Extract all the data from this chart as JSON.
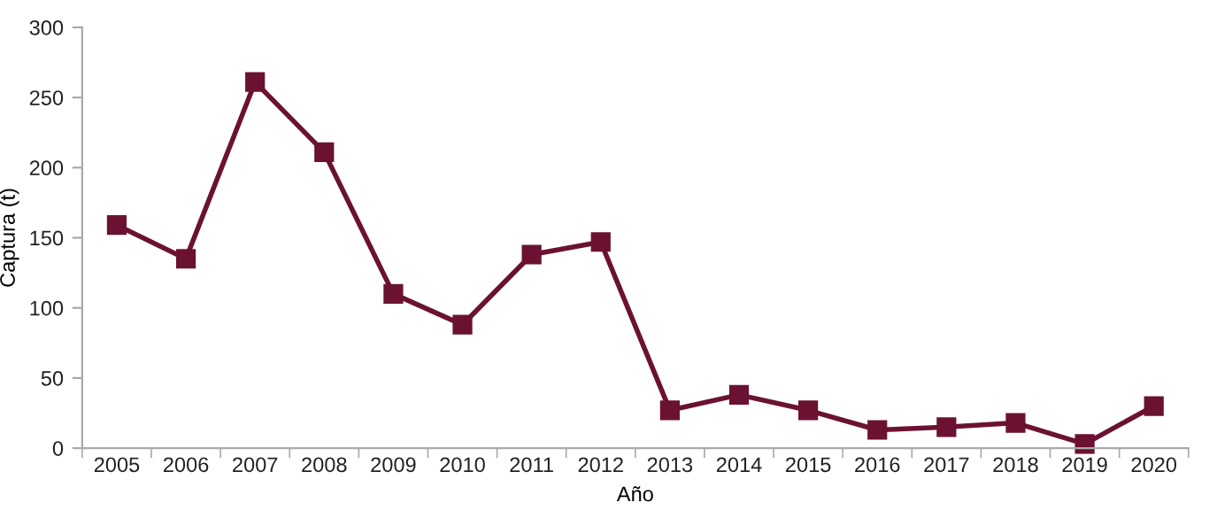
{
  "chart_data": {
    "type": "line",
    "xlabel": "Año",
    "ylabel": "Captura (t)",
    "categories": [
      "2005",
      "2006",
      "2007",
      "2008",
      "2009",
      "2010",
      "2011",
      "2012",
      "2013",
      "2014",
      "2015",
      "2016",
      "2017",
      "2018",
      "2019",
      "2020"
    ],
    "series": [
      {
        "color": "#6b1232",
        "values": [
          159,
          135,
          261,
          211,
          110,
          88,
          138,
          147,
          27,
          38,
          27,
          13,
          15,
          18,
          3,
          30
        ]
      }
    ],
    "ylim": [
      0,
      300
    ],
    "yticks": [
      0,
      50,
      100,
      150,
      200,
      250,
      300
    ],
    "marker": "square",
    "line_style": "solid",
    "grid": false,
    "legend": false
  }
}
